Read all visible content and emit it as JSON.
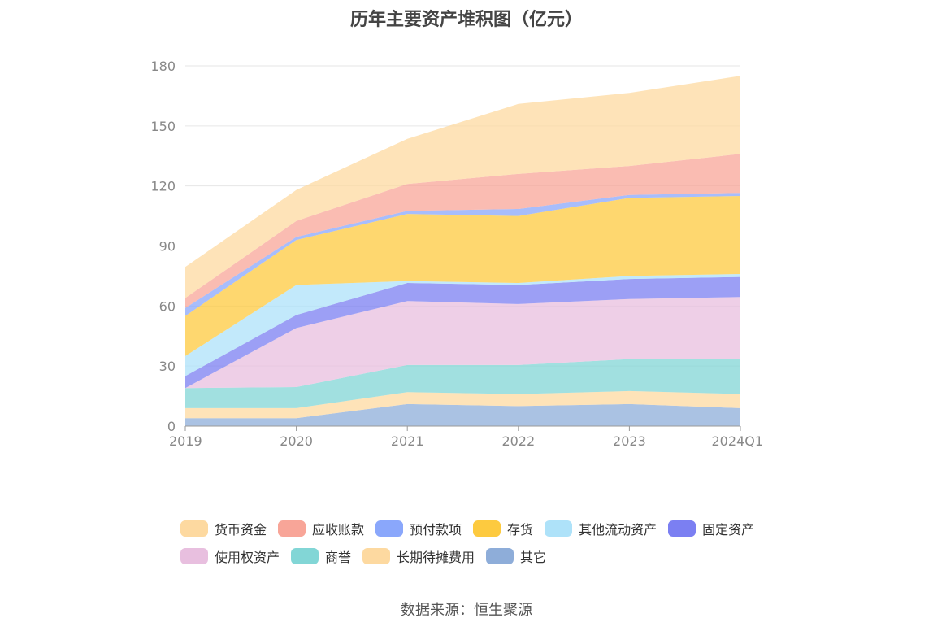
{
  "chart_data": {
    "type": "area",
    "stacked": true,
    "title": "历年主要资产堆积图（亿元）",
    "xlabel": "",
    "ylabel": "",
    "categories": [
      "2019",
      "2020",
      "2021",
      "2022",
      "2023",
      "2024Q1"
    ],
    "ylim": [
      0,
      180
    ],
    "yticks": [
      0,
      30,
      60,
      90,
      120,
      150,
      180
    ],
    "grid": true,
    "legend_position": "bottom",
    "series": [
      {
        "name": "其它",
        "color": "#8eadd9",
        "values": [
          4,
          4,
          11,
          10,
          11,
          9
        ]
      },
      {
        "name": "长期待摊费用",
        "color": "#fdd9a0",
        "values": [
          5,
          5,
          6,
          6,
          6.5,
          7
        ]
      },
      {
        "name": "商誉",
        "color": "#82d6d6",
        "values": [
          10,
          10.5,
          13.5,
          14.5,
          16,
          17.5
        ]
      },
      {
        "name": "使用权资产",
        "color": "#e8bfdf",
        "values": [
          0,
          29.5,
          32,
          30.5,
          30,
          31
        ]
      },
      {
        "name": "固定资产",
        "color": "#7b7ff2",
        "values": [
          6,
          6.5,
          9,
          9.5,
          10,
          10
        ]
      },
      {
        "name": "其他流动资产",
        "color": "#aee2f9",
        "values": [
          10,
          15,
          1,
          1,
          1.5,
          1.5
        ]
      },
      {
        "name": "存货",
        "color": "#fdca3f",
        "values": [
          20,
          22.5,
          33.5,
          33.5,
          39,
          39
        ]
      },
      {
        "name": "预付款项",
        "color": "#8aa7fb",
        "values": [
          4,
          1.5,
          1.5,
          3.5,
          1.5,
          1.5
        ]
      },
      {
        "name": "应收账款",
        "color": "#f8a598",
        "values": [
          5,
          8,
          13.5,
          17.5,
          14.5,
          19.5
        ]
      },
      {
        "name": "货币资金",
        "color": "#fdd9a0",
        "values": [
          15.5,
          15.5,
          22.5,
          35,
          36.5,
          39
        ]
      }
    ]
  },
  "legend": {
    "items": [
      {
        "label": "货币资金",
        "color": "#fdd9a0"
      },
      {
        "label": "应收账款",
        "color": "#f8a598"
      },
      {
        "label": "预付款项",
        "color": "#8aa7fb"
      },
      {
        "label": "存货",
        "color": "#fdca3f"
      },
      {
        "label": "其他流动资产",
        "color": "#aee2f9"
      },
      {
        "label": "固定资产",
        "color": "#7b7ff2"
      },
      {
        "label": "使用权资产",
        "color": "#e8bfdf"
      },
      {
        "label": "商誉",
        "color": "#82d6d6"
      },
      {
        "label": "长期待摊费用",
        "color": "#fdd9a0"
      },
      {
        "label": "其它",
        "color": "#8eadd9"
      }
    ]
  },
  "source": "数据来源：恒生聚源"
}
